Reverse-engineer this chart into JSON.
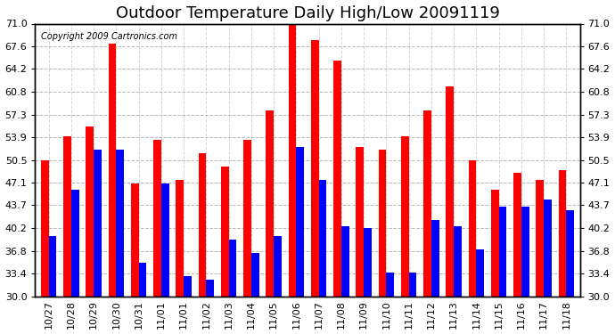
{
  "title": "Outdoor Temperature Daily High/Low 20091119",
  "copyright": "Copyright 2009 Cartronics.com",
  "dates": [
    "10/27",
    "10/28",
    "10/29",
    "10/30",
    "10/31",
    "11/01",
    "11/01",
    "11/02",
    "11/03",
    "11/04",
    "11/05",
    "11/06",
    "11/07",
    "11/08",
    "11/09",
    "11/10",
    "11/11",
    "11/12",
    "11/13",
    "11/14",
    "11/15",
    "11/16",
    "11/17",
    "11/18"
  ],
  "highs": [
    50.5,
    54.0,
    55.5,
    68.0,
    47.0,
    53.5,
    47.5,
    51.5,
    49.5,
    53.5,
    58.0,
    71.0,
    68.5,
    65.5,
    52.5,
    52.0,
    54.0,
    58.0,
    61.5,
    50.5,
    46.0,
    48.5,
    47.5,
    49.0
  ],
  "lows": [
    39.0,
    46.0,
    52.0,
    52.0,
    35.0,
    47.0,
    33.0,
    32.5,
    38.5,
    36.5,
    39.0,
    52.5,
    47.5,
    40.5,
    40.2,
    33.5,
    33.5,
    41.5,
    40.5,
    37.0,
    43.5,
    43.5,
    44.5,
    43.0
  ],
  "high_color": "#FF0000",
  "low_color": "#0000FF",
  "bg_color": "#FFFFFF",
  "plot_bg_color": "#FFFFFF",
  "grid_color": "#AAAAAA",
  "ymin": 30.0,
  "ymax": 71.0,
  "yticks": [
    30.0,
    33.4,
    36.8,
    40.2,
    43.7,
    47.1,
    50.5,
    53.9,
    57.3,
    60.8,
    64.2,
    67.6,
    71.0
  ],
  "title_fontsize": 13,
  "tick_fontsize": 8,
  "copyright_fontsize": 7
}
